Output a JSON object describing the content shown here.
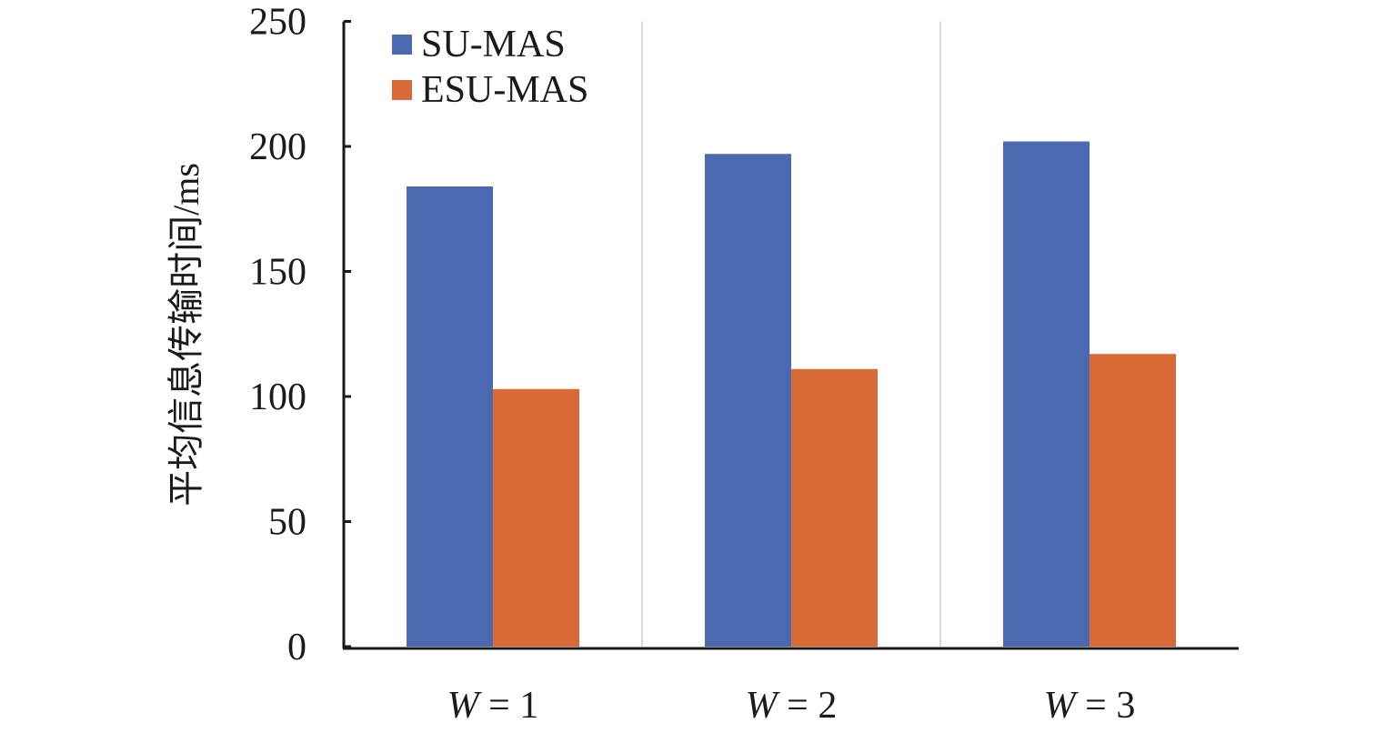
{
  "chart_data": {
    "type": "bar",
    "title": "",
    "xlabel": "",
    "ylabel": "平均信息传输时间/ms",
    "ylim": [
      0,
      250
    ],
    "yticks": [
      0,
      50,
      100,
      150,
      200,
      250
    ],
    "categories": [
      {
        "var": "W",
        "rest": " = 1"
      },
      {
        "var": "W",
        "rest": " = 2"
      },
      {
        "var": "W",
        "rest": " = 3"
      }
    ],
    "series": [
      {
        "name": "SU-MAS",
        "color": "#4a69b1",
        "values": [
          184,
          197,
          202
        ]
      },
      {
        "name": "ESU-MAS",
        "color": "#da6a36",
        "values": [
          103,
          111,
          117
        ]
      }
    ],
    "legend_position": "top-left",
    "grid": "vertical separators between groups"
  }
}
